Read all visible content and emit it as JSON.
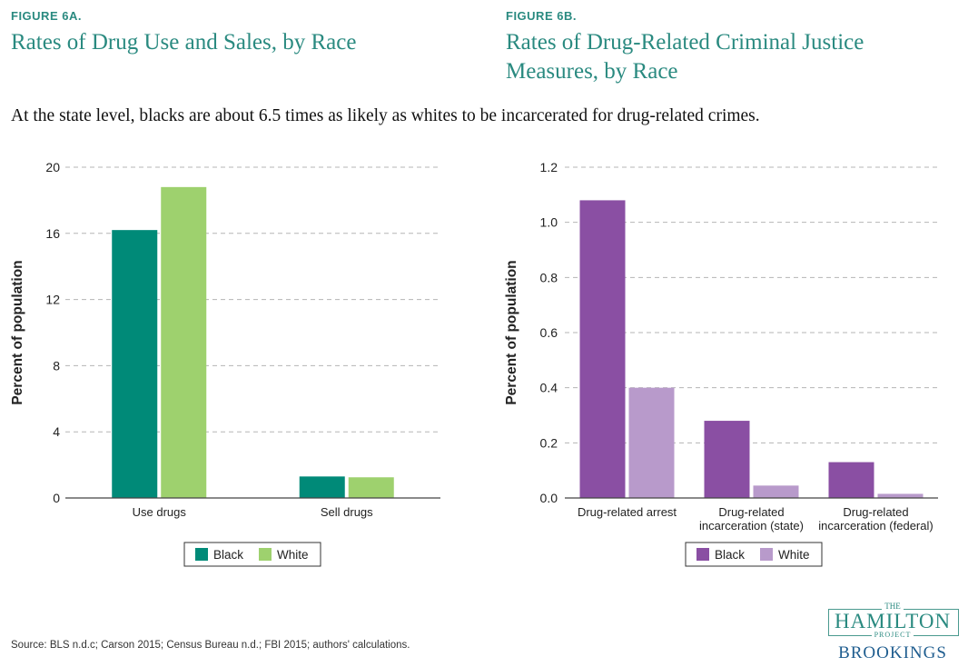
{
  "header": {
    "left_label": "FIGURE 6A.",
    "left_title": "Rates of Drug Use and Sales, by Race",
    "right_label": "FIGURE 6B.",
    "right_title_line1": "Rates of Drug-Related Criminal Justice",
    "right_title_line2": "Measures, by Race",
    "subtitle": "At the state level, blacks are about 6.5 times as likely as whites to be incarcerated for drug-related crimes."
  },
  "source": "Source: BLS n.d.c; Carson 2015; Census Bureau n.d.; FBI 2015; authors' calculations.",
  "logo": {
    "the": "THE",
    "hamilton": "HAMILTON",
    "project": "PROJECT",
    "brookings": "BROOKINGS"
  },
  "chart_data": [
    {
      "type": "bar",
      "title": "Rates of Drug Use and Sales, by Race",
      "xlabel": "",
      "ylabel": "Percent of population",
      "ylim": [
        0,
        20
      ],
      "yticks": [
        0,
        4,
        8,
        12,
        16,
        20
      ],
      "ytick_labels": [
        "0",
        "4",
        "8",
        "12",
        "16",
        "20"
      ],
      "grid": true,
      "legend": "bottom-center",
      "categories": [
        [
          "Use drugs"
        ],
        [
          "Sell drugs"
        ]
      ],
      "series": [
        {
          "name": "Black",
          "color": "#008a78",
          "values": [
            16.2,
            1.3
          ]
        },
        {
          "name": "White",
          "color": "#9ed16e",
          "values": [
            18.8,
            1.25
          ]
        }
      ]
    },
    {
      "type": "bar",
      "title": "Rates of Drug-Related Criminal Justice Measures, by Race",
      "xlabel": "",
      "ylabel": "Percent of population",
      "ylim": [
        0,
        1.2
      ],
      "yticks": [
        0,
        0.2,
        0.4,
        0.6,
        0.8,
        1.0,
        1.2
      ],
      "ytick_labels": [
        "0.0",
        "0.2",
        "0.4",
        "0.6",
        "0.8",
        "1.0",
        "1.2"
      ],
      "grid": true,
      "legend": "bottom-center",
      "categories": [
        [
          "Drug-related arrest"
        ],
        [
          "Drug-related",
          "incarceration (state)"
        ],
        [
          "Drug-related",
          "incarceration (federal)"
        ]
      ],
      "series": [
        {
          "name": "Black",
          "color": "#8a4fa3",
          "values": [
            1.08,
            0.28,
            0.13
          ]
        },
        {
          "name": "White",
          "color": "#b89acb",
          "values": [
            0.4,
            0.045,
            0.015
          ]
        }
      ]
    }
  ]
}
